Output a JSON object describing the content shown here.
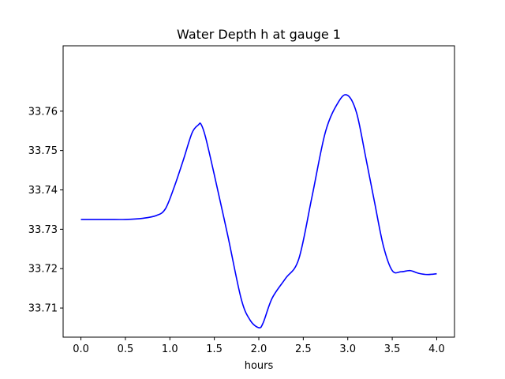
{
  "chart_data": {
    "type": "line",
    "title": "Water Depth h at gauge 1",
    "xlabel": "hours",
    "ylabel": "",
    "xlim": [
      -0.2,
      4.2
    ],
    "ylim": [
      33.7026,
      33.7766
    ],
    "xticks": [
      0.0,
      0.5,
      1.0,
      1.5,
      2.0,
      2.5,
      3.0,
      3.5,
      4.0
    ],
    "xtick_labels": [
      "0.0",
      "0.5",
      "1.0",
      "1.5",
      "2.0",
      "2.5",
      "3.0",
      "3.5",
      "4.0"
    ],
    "yticks": [
      33.71,
      33.72,
      33.73,
      33.74,
      33.75,
      33.76
    ],
    "ytick_labels": [
      "33.71",
      "33.72",
      "33.73",
      "33.74",
      "33.75",
      "33.76"
    ],
    "grid": false,
    "legend": false,
    "series": [
      {
        "color": "#0000ff",
        "x": [
          0.0,
          0.3,
          0.5,
          0.7,
          0.85,
          0.95,
          1.05,
          1.15,
          1.25,
          1.32,
          1.35,
          1.4,
          1.5,
          1.65,
          1.8,
          1.9,
          2.0,
          2.05,
          2.15,
          2.3,
          2.45,
          2.6,
          2.75,
          2.9,
          3.0,
          3.1,
          3.2,
          3.3,
          3.4,
          3.5,
          3.6,
          3.7,
          3.8,
          3.9,
          4.0
        ],
        "y": [
          33.7325,
          33.7325,
          33.7325,
          33.7328,
          33.7335,
          33.7352,
          33.7408,
          33.7475,
          33.7545,
          33.7565,
          33.7567,
          33.7535,
          33.7438,
          33.7285,
          33.7125,
          33.707,
          33.705,
          33.7063,
          33.7125,
          33.7175,
          33.7225,
          33.7385,
          33.7548,
          33.7625,
          33.764,
          33.7595,
          33.7485,
          33.737,
          33.7258,
          33.7195,
          33.7192,
          33.7195,
          33.7188,
          33.7185,
          33.7187
        ]
      }
    ]
  }
}
